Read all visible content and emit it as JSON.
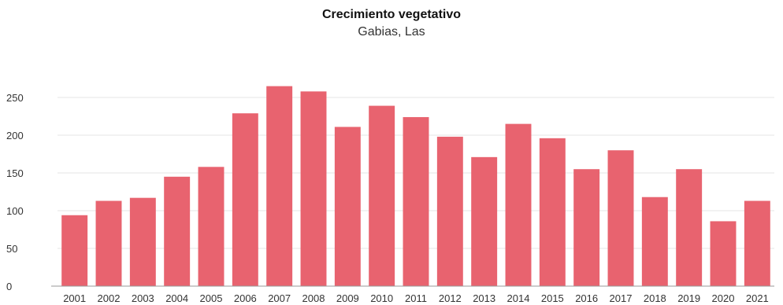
{
  "chart_data": {
    "type": "bar",
    "title": "Crecimiento vegetativo",
    "subtitle": "Gabias, Las",
    "xlabel": "",
    "ylabel": "",
    "categories": [
      "2001",
      "2002",
      "2003",
      "2004",
      "2005",
      "2006",
      "2007",
      "2008",
      "2009",
      "2010",
      "2011",
      "2012",
      "2013",
      "2014",
      "2015",
      "2016",
      "2017",
      "2018",
      "2019",
      "2020",
      "2021"
    ],
    "values": [
      94,
      113,
      117,
      145,
      158,
      229,
      265,
      258,
      211,
      239,
      224,
      198,
      171,
      215,
      196,
      155,
      180,
      118,
      155,
      86,
      113
    ],
    "ylim": [
      0,
      275
    ],
    "yticks": [
      0,
      50,
      100,
      150,
      200,
      250
    ],
    "grid": true,
    "legend": "none",
    "bar_color": "#e8636f",
    "grid_color": "#e6e6e6",
    "axis_color": "#999999"
  }
}
